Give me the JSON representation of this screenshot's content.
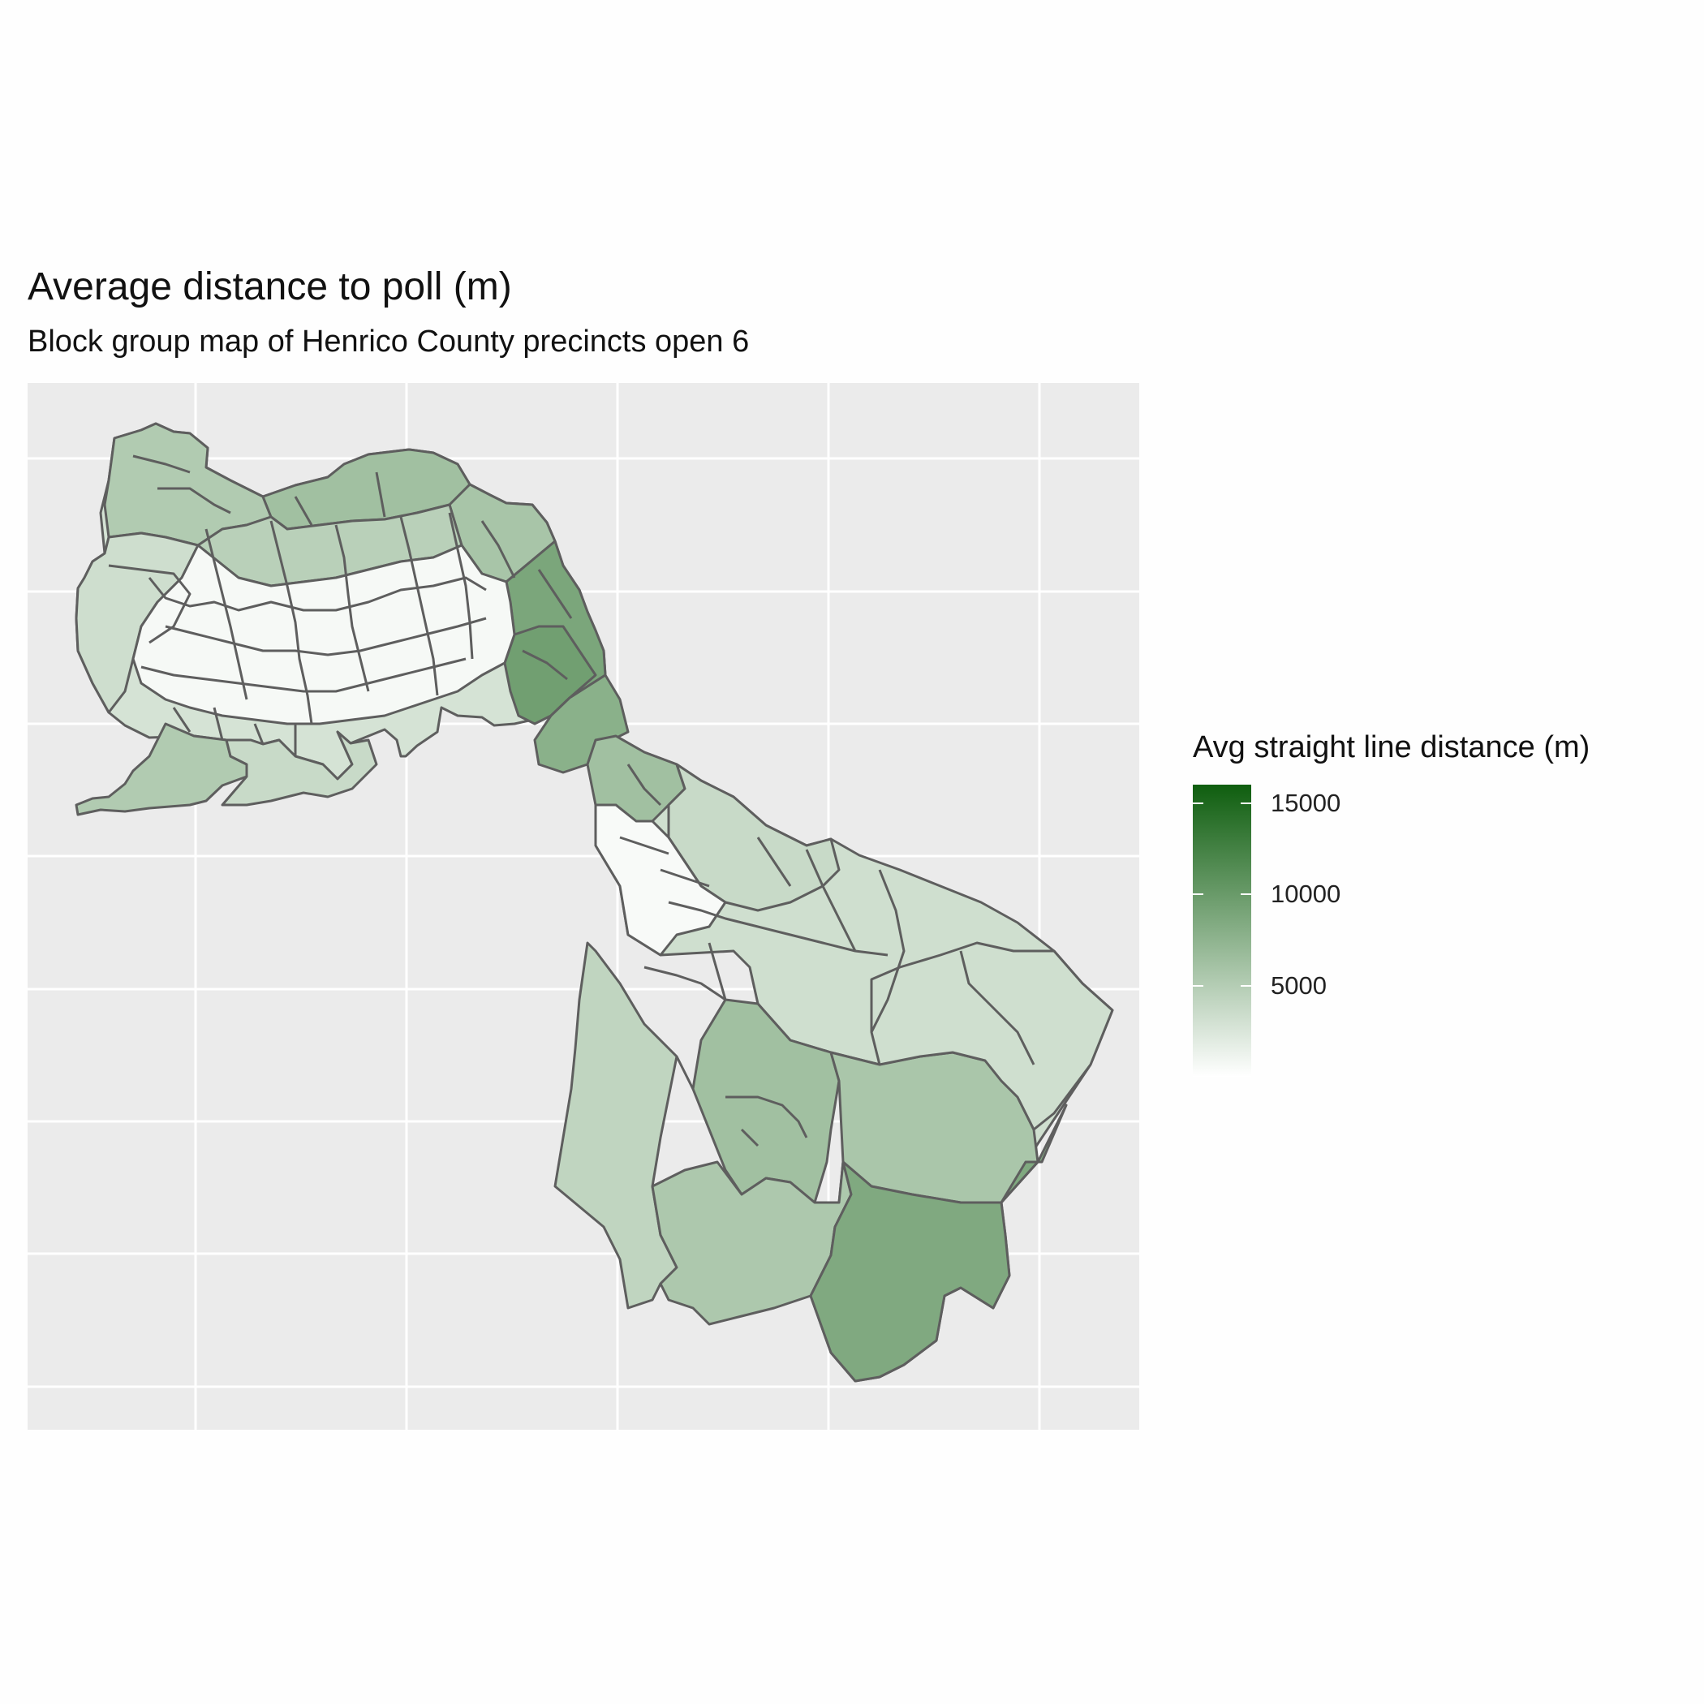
{
  "title": "Average distance to poll (m)",
  "subtitle": "Block group map of Henrico County precincts open 6",
  "map": {
    "background": "#ebebeb",
    "grid_color": "#ffffff",
    "border_color": "#5e5e5e",
    "grid": true,
    "axis_labels_shown": false
  },
  "legend": {
    "title": "Avg straight line distance (m)",
    "position": "right",
    "low_color": "#ffffff",
    "high_color": "#0f5e0f",
    "range": [
      0,
      16000
    ],
    "ticks": [
      {
        "value": 15000,
        "label": "15000"
      },
      {
        "value": 10000,
        "label": "10000"
      },
      {
        "value": 5000,
        "label": "5000"
      }
    ]
  },
  "regions": {
    "west_outline_value": 2800,
    "east_tail_value": 3200,
    "southeast_outline_value": 4000,
    "polygons": [
      {
        "id": "nw-north-1",
        "value": 5200
      },
      {
        "id": "nw-north-2",
        "value": 6300
      },
      {
        "id": "nw-north-3",
        "value": 5800
      },
      {
        "id": "nw-north-4",
        "value": 4700
      },
      {
        "id": "nw-east-band",
        "value": 8800
      },
      {
        "id": "nw-east-bulge",
        "value": 9500
      },
      {
        "id": "nw-core",
        "value": 600
      },
      {
        "id": "nw-west-rim",
        "value": 3300
      },
      {
        "id": "nw-southwest-lobe",
        "value": 5200
      },
      {
        "id": "nw-south-lobe",
        "value": 3700
      },
      {
        "id": "mid-corridor-1",
        "value": 7800
      },
      {
        "id": "mid-corridor-2",
        "value": 6300
      },
      {
        "id": "mid-light-core",
        "value": 500
      },
      {
        "id": "mid-northeast",
        "value": 3700
      },
      {
        "id": "se-west-strip",
        "value": 4200
      },
      {
        "id": "se-center",
        "value": 6300
      },
      {
        "id": "se-middle-band",
        "value": 5700
      },
      {
        "id": "se-east",
        "value": 3200
      },
      {
        "id": "se-south-center",
        "value": 5500
      },
      {
        "id": "se-southeast-large",
        "value": 8500
      }
    ]
  }
}
